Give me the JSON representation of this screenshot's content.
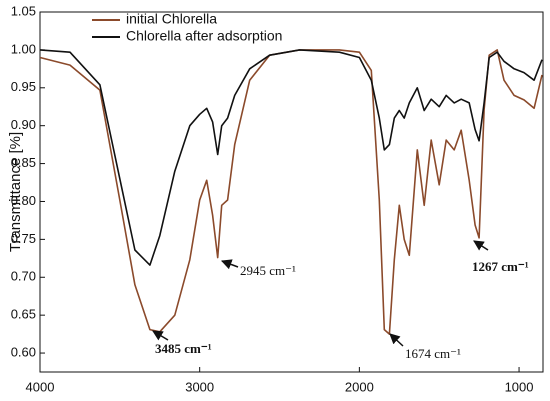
{
  "chart_data": {
    "type": "line",
    "ylabel": "Transmittance [%]",
    "x": [
      4000,
      3812,
      3625,
      3500,
      3406,
      3312,
      3250,
      3156,
      3062,
      3000,
      2956,
      2919,
      2887,
      2862,
      2825,
      2781,
      2687,
      2562,
      2375,
      2125,
      2000,
      1925,
      1875,
      1844,
      1812,
      1781,
      1750,
      1719,
      1687,
      1637,
      1594,
      1550,
      1500,
      1456,
      1406,
      1362,
      1312,
      1275,
      1250,
      1219,
      1187,
      1137,
      1094,
      1031,
      969,
      906,
      856
    ],
    "series": [
      {
        "name": "initial Chlorella",
        "color": "#8b4a2b",
        "values": [
          0.99,
          0.98,
          0.947,
          0.802,
          0.69,
          0.631,
          0.628,
          0.65,
          0.723,
          0.802,
          0.828,
          0.782,
          0.726,
          0.795,
          0.802,
          0.875,
          0.96,
          0.993,
          1.0,
          1.0,
          0.997,
          0.973,
          0.802,
          0.631,
          0.625,
          0.723,
          0.795,
          0.75,
          0.729,
          0.868,
          0.795,
          0.881,
          0.822,
          0.881,
          0.868,
          0.894,
          0.828,
          0.769,
          0.752,
          0.921,
          0.993,
          1.0,
          0.96,
          0.94,
          0.934,
          0.923,
          0.967
        ]
      },
      {
        "name": "Chlorella after adsorption",
        "color": "#111111",
        "values": [
          1.0,
          0.997,
          0.954,
          0.83,
          0.736,
          0.716,
          0.755,
          0.84,
          0.9,
          0.915,
          0.923,
          0.905,
          0.862,
          0.9,
          0.91,
          0.94,
          0.975,
          0.993,
          1.0,
          0.997,
          0.99,
          0.96,
          0.91,
          0.868,
          0.875,
          0.91,
          0.92,
          0.91,
          0.93,
          0.95,
          0.92,
          0.935,
          0.925,
          0.94,
          0.93,
          0.935,
          0.93,
          0.895,
          0.88,
          0.93,
          0.99,
          0.997,
          0.985,
          0.975,
          0.97,
          0.96,
          0.987
        ]
      }
    ],
    "xlim": [
      4000,
      850
    ],
    "xticks": [
      4000,
      3000,
      2000,
      1000
    ],
    "ylim": [
      0.575,
      1.05
    ],
    "yticks": [
      {
        "value": 0.6,
        "label": "0.60"
      },
      0.65,
      {
        "value": 0.7,
        "label": "0.70"
      },
      0.75,
      {
        "value": 0.8,
        "label": "0.80"
      },
      0.85,
      {
        "value": 0.9,
        "label": "0.90"
      },
      0.95,
      {
        "value": 1.0,
        "label": "1.00"
      },
      1.05
    ],
    "legend": "upper left",
    "annotations": [
      {
        "text": "3485 cm⁻¹"
      },
      {
        "text": "2945 cm⁻¹"
      },
      {
        "text": "1674 cm⁻¹"
      },
      {
        "text": "1267 cm⁻¹"
      }
    ]
  }
}
